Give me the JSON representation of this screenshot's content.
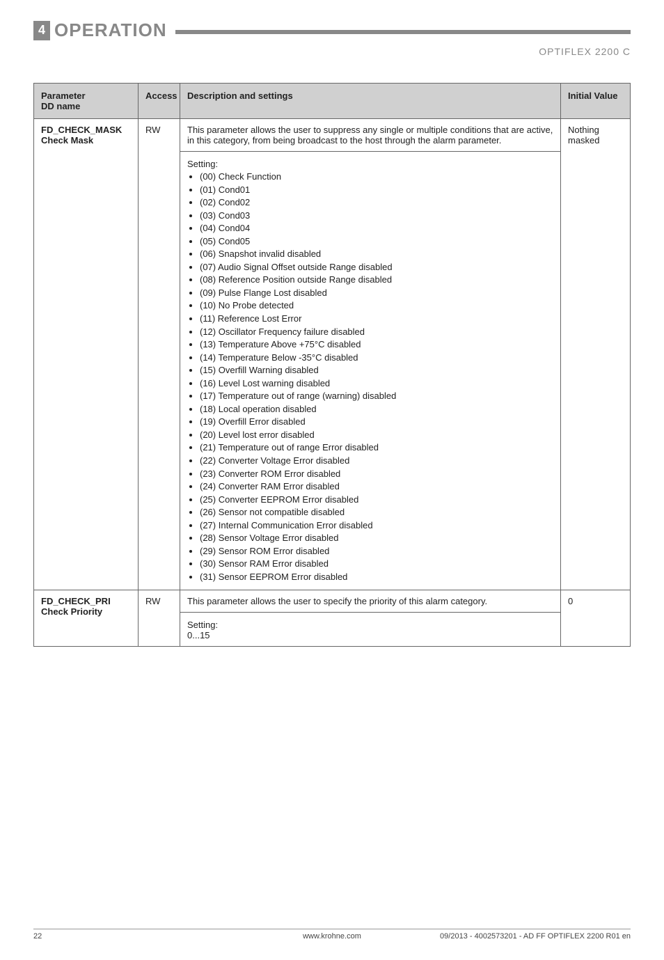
{
  "header": {
    "section_number": "4",
    "section_title": "OPERATION",
    "doc_code": "OPTIFLEX 2200 C"
  },
  "table": {
    "headers": {
      "parameter": "Parameter",
      "dd_name": "DD name",
      "access": "Access",
      "description": "Description and settings",
      "initial": "Initial Value"
    },
    "rows": [
      {
        "param": "FD_CHECK_MASK",
        "dd": "Check Mask",
        "access": "RW",
        "desc_main": "This parameter allows the user to suppress any single or multiple conditions that are active, in this category, from being broadcast to the host through the alarm parameter.",
        "setting_label": "Setting:",
        "bullets": [
          "(00) Check Function",
          "(01) Cond01",
          "(02) Cond02",
          "(03) Cond03",
          "(04) Cond04",
          "(05) Cond05",
          "(06) Snapshot invalid disabled",
          "(07) Audio Signal Offset outside Range disabled",
          "(08) Reference Position outside Range disabled",
          "(09) Pulse Flange Lost disabled",
          "(10) No Probe detected",
          "(11) Reference Lost Error",
          "(12) Oscillator Frequency failure disabled",
          "(13) Temperature Above +75°C disabled",
          "(14) Temperature Below -35°C disabled",
          "(15) Overfill Warning disabled",
          "(16) Level Lost warning disabled",
          "(17) Temperature out of range (warning) disabled",
          "(18) Local operation disabled",
          "(19) Overfill Error disabled",
          "(20) Level lost error disabled",
          "(21) Temperature out of range Error disabled",
          "(22) Converter Voltage Error disabled",
          "(23) Converter ROM Error disabled",
          "(24) Converter RAM Error disabled",
          "(25) Converter EEPROM Error disabled",
          "(26) Sensor not compatible disabled",
          "(27) Internal Communication Error disabled",
          "(28) Sensor Voltage Error disabled",
          "(29) Sensor ROM Error disabled",
          "(30) Sensor RAM Error disabled",
          "(31) Sensor EEPROM Error disabled"
        ],
        "initial": "Nothing masked"
      },
      {
        "param": "FD_CHECK_PRI",
        "dd": "Check Priority",
        "access": "RW",
        "desc_main": "This parameter allows the user to specify the priority of this alarm category.",
        "setting_label": "Setting:",
        "setting_value": "0...15",
        "initial": "0"
      }
    ]
  },
  "footer": {
    "page": "22",
    "center": "www.krohne.com",
    "right": "09/2013 - 4002573201 - AD FF OPTIFLEX 2200 R01 en"
  }
}
